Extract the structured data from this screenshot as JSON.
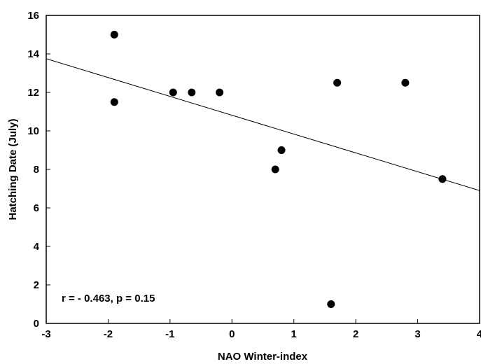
{
  "chart_data": {
    "type": "scatter",
    "xlabel": "NAO Winter-index",
    "ylabel": "Hatching Date (July)",
    "xlim": [
      -3,
      4
    ],
    "ylim": [
      0,
      16
    ],
    "xticks": [
      -3,
      -2,
      -1,
      0,
      1,
      2,
      3,
      4
    ],
    "yticks": [
      0,
      2,
      4,
      6,
      8,
      10,
      12,
      14,
      16
    ],
    "grid": false,
    "points": [
      {
        "x": -1.9,
        "y": 15.0
      },
      {
        "x": -1.9,
        "y": 11.5
      },
      {
        "x": -0.95,
        "y": 12.0
      },
      {
        "x": -0.65,
        "y": 12.0
      },
      {
        "x": -0.2,
        "y": 12.0
      },
      {
        "x": 0.7,
        "y": 8.0
      },
      {
        "x": 0.8,
        "y": 9.0
      },
      {
        "x": 1.6,
        "y": 1.0
      },
      {
        "x": 1.7,
        "y": 12.5
      },
      {
        "x": 2.8,
        "y": 12.5
      },
      {
        "x": 3.4,
        "y": 7.5
      }
    ],
    "trendline": {
      "x": [
        -3,
        4
      ],
      "y": [
        13.75,
        6.9
      ]
    },
    "annotation": "r = - 0.463, p = 0.15"
  }
}
